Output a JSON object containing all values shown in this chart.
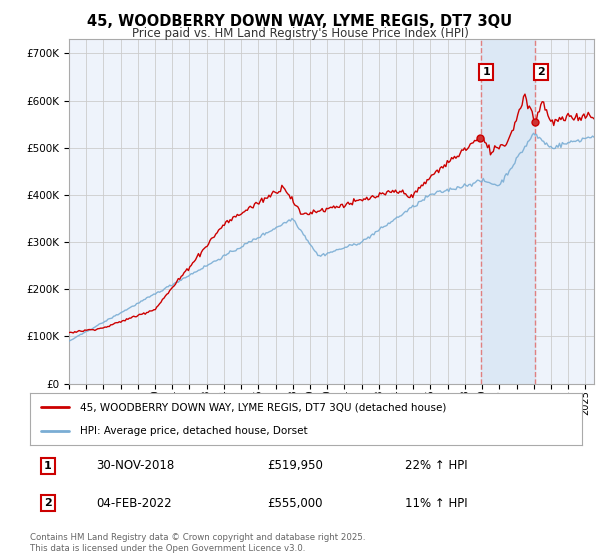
{
  "title": "45, WOODBERRY DOWN WAY, LYME REGIS, DT7 3QU",
  "subtitle": "Price paid vs. HM Land Registry's House Price Index (HPI)",
  "background_color": "#ffffff",
  "grid_color": "#cccccc",
  "plot_bg_color": "#eef3fb",
  "red_line_label": "45, WOODBERRY DOWN WAY, LYME REGIS, DT7 3QU (detached house)",
  "blue_line_label": "HPI: Average price, detached house, Dorset",
  "marker1_date_str": "30-NOV-2018",
  "marker1_price": 519950,
  "marker1_pct": "22%",
  "marker1_year": 2018.917,
  "marker2_date_str": "04-FEB-2022",
  "marker2_price": 555000,
  "marker2_pct": "11%",
  "marker2_year": 2022.09,
  "footer": "Contains HM Land Registry data © Crown copyright and database right 2025.\nThis data is licensed under the Open Government Licence v3.0.",
  "ylim": [
    0,
    730000
  ],
  "yticks": [
    0,
    100000,
    200000,
    300000,
    400000,
    500000,
    600000,
    700000
  ],
  "ytick_labels": [
    "£0",
    "£100K",
    "£200K",
    "£300K",
    "£400K",
    "£500K",
    "£600K",
    "£700K"
  ],
  "xlim_start": 1995.0,
  "xlim_end": 2025.5,
  "red_color": "#cc0000",
  "blue_color": "#7aadd4",
  "vline_color": "#e08080",
  "shade_color": "#dce8f5"
}
